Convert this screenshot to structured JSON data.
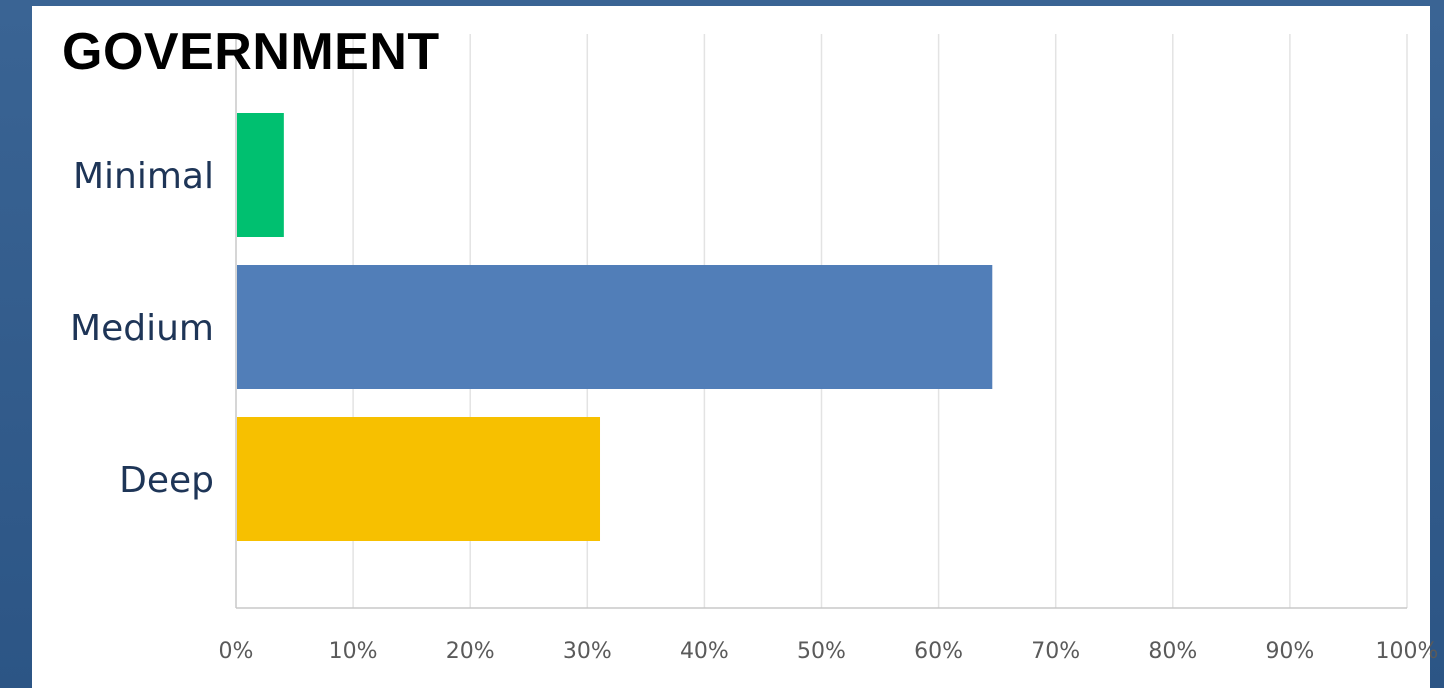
{
  "chart_data": {
    "type": "bar",
    "orientation": "horizontal",
    "title": "GOVERNMENT",
    "categories": [
      "Minimal",
      "Medium",
      "Deep"
    ],
    "values": [
      4,
      64.5,
      31
    ],
    "colors": [
      "#00c070",
      "#517eb8",
      "#f7c000"
    ],
    "xlim": [
      0,
      100
    ],
    "x_ticks": [
      "0%",
      "10%",
      "20%",
      "30%",
      "40%",
      "50%",
      "60%",
      "70%",
      "80%",
      "90%",
      "100%"
    ],
    "x_unit": "percent",
    "grid": "vertical",
    "legend": "none"
  },
  "theme": {
    "frame_color": "#2f5a8a",
    "panel_color": "#ffffff",
    "gridline_color": "#e3e3e3",
    "category_text_color": "#1e3557"
  }
}
